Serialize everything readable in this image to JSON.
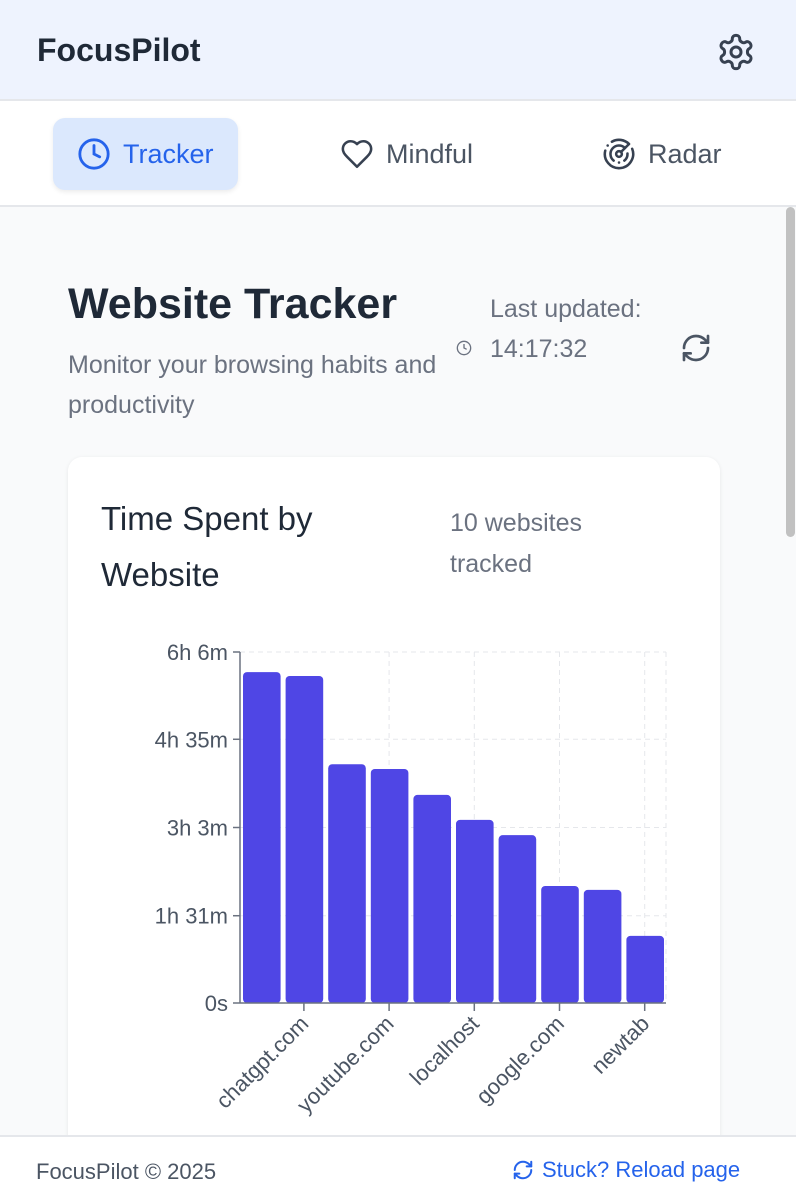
{
  "header": {
    "title": "FocusPilot",
    "settings_icon": "gear-icon"
  },
  "tabs": [
    {
      "label": "Tracker",
      "icon": "clock-icon",
      "active": true
    },
    {
      "label": "Mindful",
      "icon": "heart-icon",
      "active": false
    },
    {
      "label": "Radar",
      "icon": "radar-icon",
      "active": false
    }
  ],
  "page": {
    "title": "Website Tracker",
    "subtitle": "Monitor your browsing habits and productivity",
    "last_updated_label": "Last updated:",
    "last_updated_time": "14:17:32"
  },
  "card": {
    "title": "Time Spent by Website",
    "count": "10 websites tracked"
  },
  "chart_data": {
    "type": "bar",
    "title": "Time Spent by Website",
    "categories": [
      "",
      "chatgpt.com",
      "",
      "youtube.com",
      "",
      "localhost",
      "",
      "google.com",
      "",
      "newtab"
    ],
    "values": [
      345,
      341,
      249,
      244,
      217,
      191,
      175,
      122,
      118,
      70
    ],
    "value_unit": "minutes",
    "yticks": [
      {
        "value": 0,
        "label": "0s"
      },
      {
        "value": 91,
        "label": "1h 31m"
      },
      {
        "value": 183,
        "label": "3h 3m"
      },
      {
        "value": 275,
        "label": "4h 35m"
      },
      {
        "value": 366,
        "label": "6h 6m"
      }
    ],
    "ylim": [
      0,
      366
    ],
    "grid": true,
    "color": "#4f46e5"
  },
  "footer": {
    "copyright": "FocusPilot © 2025",
    "reload": "Stuck? Reload page"
  }
}
